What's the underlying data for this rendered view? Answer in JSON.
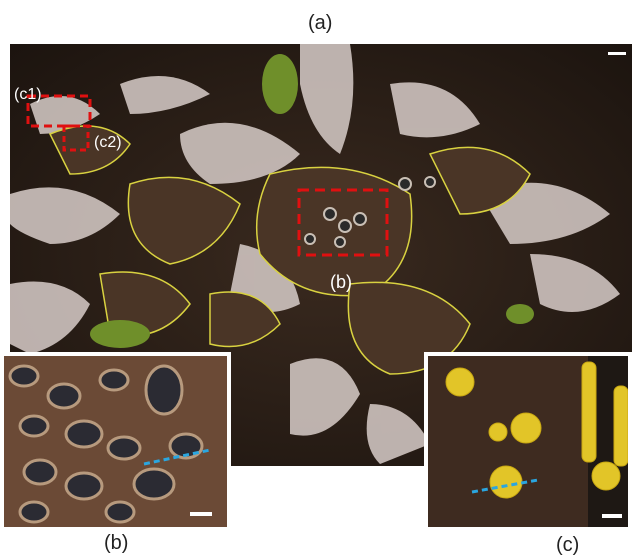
{
  "labels": {
    "panel_a": "(a)",
    "panel_b": "(b)",
    "panel_c": "(c)",
    "region_b": "(b)",
    "region_c1": "(c1)",
    "region_c2": "(c2)"
  },
  "colors": {
    "thallus_brown": "#4a3526",
    "margin_yellow": "#d9d240",
    "frond_pale": "#d8cdc9",
    "moss_green": "#6f8f2a",
    "highlight_box": "#e01010",
    "measure_line": "#2aa6e0",
    "soredia_yellow": "#e2c528",
    "scale_bar": "#ffffff"
  },
  "icons": {
    "main": "lichen-photo",
    "inset_b": "apothecia-closeup",
    "inset_c": "soralia-closeup"
  }
}
